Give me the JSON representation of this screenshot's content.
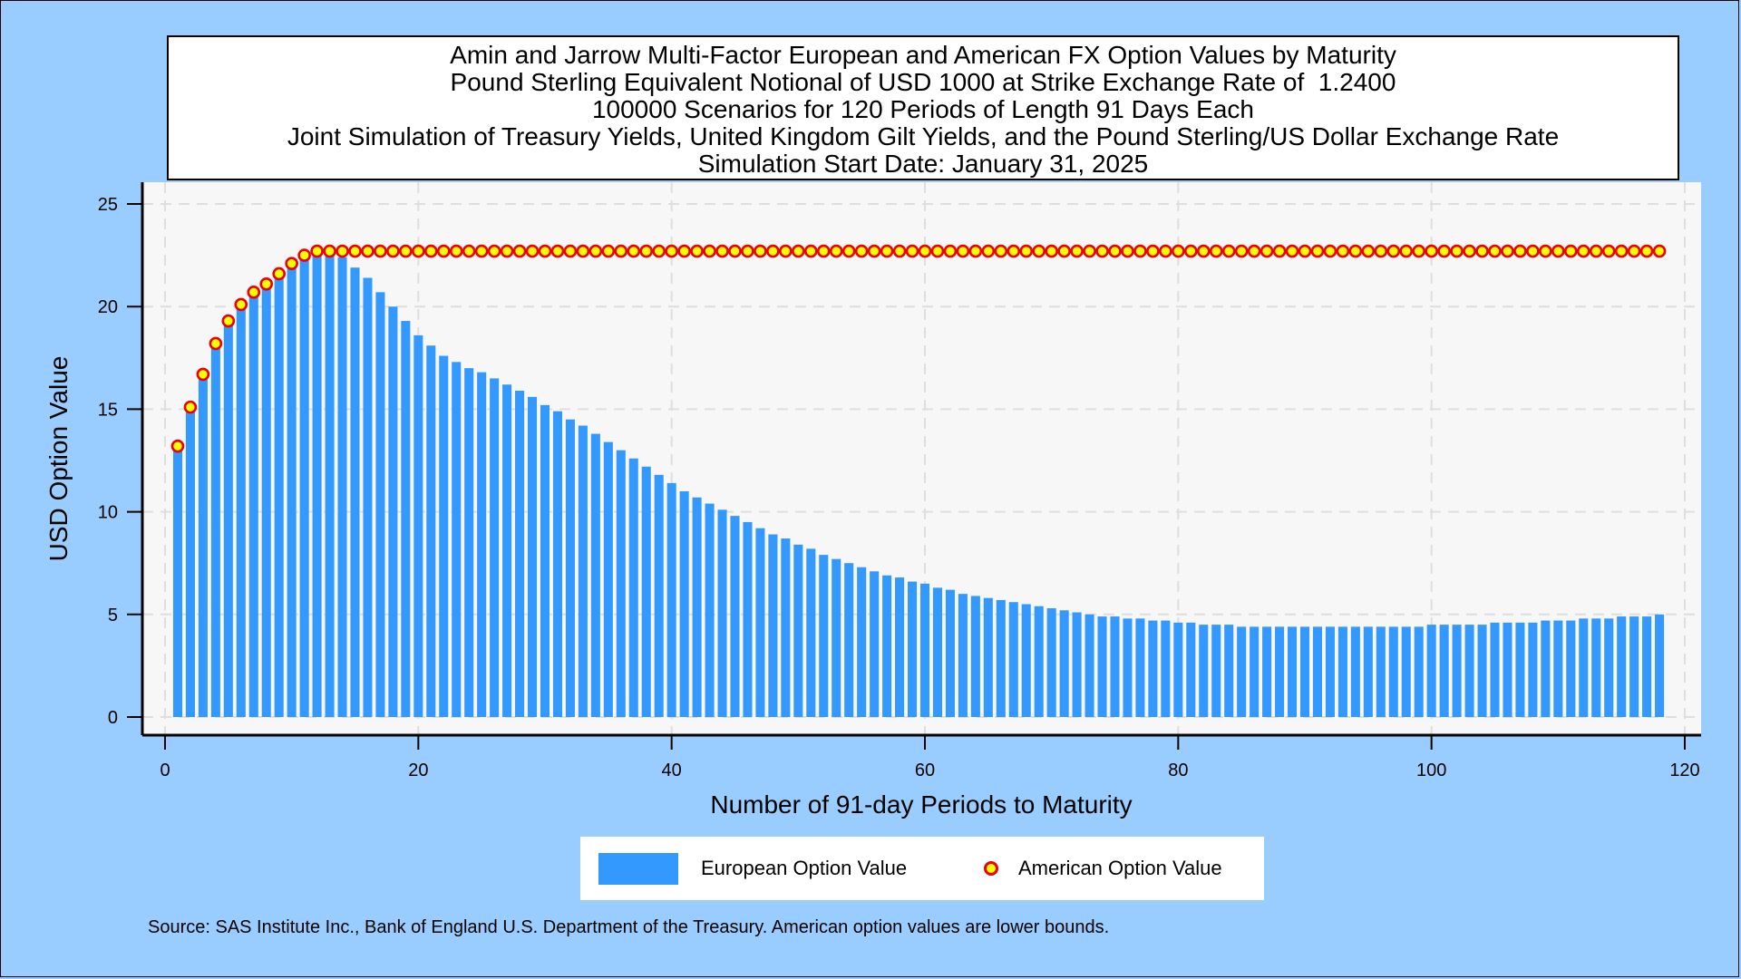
{
  "title_lines": [
    "Amin and Jarrow Multi-Factor European and American FX Option Values by Maturity",
    "Pound Sterling Equivalent Notional of USD 1000 at Strike Exchange Rate of  1.2400",
    "100000 Scenarios for 120 Periods of Length 91 Days Each",
    "Joint Simulation of Treasury Yields, United Kingdom Gilt Yields, and the Pound Sterling/US Dollar Exchange Rate",
    "Simulation Start Date: January 31, 2025"
  ],
  "footnote": "Source: SAS Institute Inc., Bank of England U.S. Department of the Treasury. American option values are lower bounds.",
  "legend": {
    "european": "European Option Value",
    "american": "American Option Value"
  },
  "colors": {
    "background": "#99ccff",
    "plot_background": "#f7f7f7",
    "bar_fill": "#3399ff",
    "marker_fill": "#ffff00",
    "marker_edge": "#ee0000"
  },
  "chart_data": {
    "type": "bar",
    "xlabel": "Number of 91-day Periods to Maturity",
    "ylabel": "USD Option Value",
    "xlim": [
      -1,
      120
    ],
    "ylim": [
      -1,
      26
    ],
    "xticks": [
      0,
      20,
      40,
      60,
      80,
      100,
      120
    ],
    "yticks": [
      0,
      5,
      10,
      15,
      20,
      25
    ],
    "grid": true,
    "legend_position": "bottom",
    "x": [
      1,
      2,
      3,
      4,
      5,
      6,
      7,
      8,
      9,
      10,
      11,
      12,
      13,
      14,
      15,
      16,
      17,
      18,
      19,
      20,
      21,
      22,
      23,
      24,
      25,
      26,
      27,
      28,
      29,
      30,
      31,
      32,
      33,
      34,
      35,
      36,
      37,
      38,
      39,
      40,
      41,
      42,
      43,
      44,
      45,
      46,
      47,
      48,
      49,
      50,
      51,
      52,
      53,
      54,
      55,
      56,
      57,
      58,
      59,
      60,
      61,
      62,
      63,
      64,
      65,
      66,
      67,
      68,
      69,
      70,
      71,
      72,
      73,
      74,
      75,
      76,
      77,
      78,
      79,
      80,
      81,
      82,
      83,
      84,
      85,
      86,
      87,
      88,
      89,
      90,
      91,
      92,
      93,
      94,
      95,
      96,
      97,
      98,
      99,
      100,
      101,
      102,
      103,
      104,
      105,
      106,
      107,
      108,
      109,
      110,
      111,
      112,
      113,
      114,
      115,
      116,
      117,
      118
    ],
    "series": [
      {
        "name": "European Option Value",
        "type": "bar",
        "values": [
          13.2,
          15.1,
          16.7,
          18.1,
          19.2,
          20.0,
          20.6,
          21.1,
          21.5,
          22.0,
          22.4,
          22.5,
          22.6,
          22.4,
          21.9,
          21.4,
          20.7,
          20.0,
          19.3,
          18.6,
          18.1,
          17.6,
          17.3,
          17.0,
          16.8,
          16.5,
          16.2,
          15.9,
          15.6,
          15.2,
          14.9,
          14.5,
          14.2,
          13.8,
          13.4,
          13.0,
          12.6,
          12.2,
          11.8,
          11.4,
          11.0,
          10.7,
          10.4,
          10.1,
          9.8,
          9.5,
          9.2,
          8.9,
          8.7,
          8.4,
          8.2,
          7.9,
          7.7,
          7.5,
          7.3,
          7.1,
          6.9,
          6.8,
          6.6,
          6.5,
          6.3,
          6.2,
          6.0,
          5.9,
          5.8,
          5.7,
          5.6,
          5.5,
          5.4,
          5.3,
          5.2,
          5.1,
          5.0,
          4.9,
          4.9,
          4.8,
          4.8,
          4.7,
          4.7,
          4.6,
          4.6,
          4.5,
          4.5,
          4.5,
          4.4,
          4.4,
          4.4,
          4.4,
          4.4,
          4.4,
          4.4,
          4.4,
          4.4,
          4.4,
          4.4,
          4.4,
          4.4,
          4.4,
          4.4,
          4.5,
          4.5,
          4.5,
          4.5,
          4.5,
          4.6,
          4.6,
          4.6,
          4.6,
          4.7,
          4.7,
          4.7,
          4.8,
          4.8,
          4.8,
          4.9,
          4.9,
          4.9,
          5.0
        ]
      },
      {
        "name": "American Option Value",
        "type": "scatter",
        "values": [
          13.2,
          15.1,
          16.7,
          18.2,
          19.3,
          20.1,
          20.7,
          21.1,
          21.6,
          22.1,
          22.5,
          22.7,
          22.7,
          22.7,
          22.7,
          22.7,
          22.7,
          22.7,
          22.7,
          22.7,
          22.7,
          22.7,
          22.7,
          22.7,
          22.7,
          22.7,
          22.7,
          22.7,
          22.7,
          22.7,
          22.7,
          22.7,
          22.7,
          22.7,
          22.7,
          22.7,
          22.7,
          22.7,
          22.7,
          22.7,
          22.7,
          22.7,
          22.7,
          22.7,
          22.7,
          22.7,
          22.7,
          22.7,
          22.7,
          22.7,
          22.7,
          22.7,
          22.7,
          22.7,
          22.7,
          22.7,
          22.7,
          22.7,
          22.7,
          22.7,
          22.7,
          22.7,
          22.7,
          22.7,
          22.7,
          22.7,
          22.7,
          22.7,
          22.7,
          22.7,
          22.7,
          22.7,
          22.7,
          22.7,
          22.7,
          22.7,
          22.7,
          22.7,
          22.7,
          22.7,
          22.7,
          22.7,
          22.7,
          22.7,
          22.7,
          22.7,
          22.7,
          22.7,
          22.7,
          22.7,
          22.7,
          22.7,
          22.7,
          22.7,
          22.7,
          22.7,
          22.7,
          22.7,
          22.7,
          22.7,
          22.7,
          22.7,
          22.7,
          22.7,
          22.7,
          22.7,
          22.7,
          22.7,
          22.7,
          22.7,
          22.7,
          22.7,
          22.7,
          22.7,
          22.7,
          22.7,
          22.7,
          22.7
        ]
      }
    ]
  }
}
